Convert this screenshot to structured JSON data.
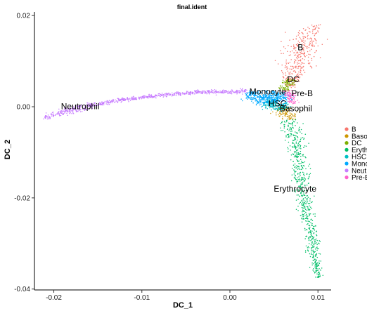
{
  "chart_data": {
    "type": "scatter",
    "title": "final.ident",
    "xlabel": "DC_1",
    "ylabel": "DC_2",
    "xlim": [
      -0.0222,
      0.0115
    ],
    "ylim": [
      -0.0402,
      0.0208
    ],
    "x_ticks": [
      {
        "value": -0.02,
        "label": "-0.02"
      },
      {
        "value": -0.01,
        "label": "-0.01"
      },
      {
        "value": 0.0,
        "label": "0.00"
      },
      {
        "value": 0.01,
        "label": "0.01"
      }
    ],
    "y_ticks": [
      {
        "value": 0.02,
        "label": "0.02"
      },
      {
        "value": 0.0,
        "label": "0.00"
      },
      {
        "value": -0.02,
        "label": "-0.02"
      },
      {
        "value": -0.04,
        "label": "-0.04"
      }
    ],
    "grid": false,
    "legend_position": "right",
    "series": [
      {
        "name": "B",
        "color": "#F8766D",
        "path": [
          [
            0.0067,
            0.0044
          ],
          [
            0.0076,
            0.009
          ],
          [
            0.0086,
            0.014
          ],
          [
            0.0095,
            0.018
          ]
        ],
        "spread": [
          0.0003,
          0.001,
          0.0011,
          0.0004
        ],
        "count": 350
      },
      {
        "name": "Basophil",
        "color": "#CD9600",
        "path": [
          [
            0.0058,
            0.0
          ],
          [
            0.0064,
            -0.0013
          ],
          [
            0.0069,
            -0.0028
          ]
        ],
        "spread": [
          0.0004,
          0.0006,
          0.0003
        ],
        "count": 120
      },
      {
        "name": "DC",
        "color": "#7CAE00",
        "path": [
          [
            0.006,
            0.0036
          ],
          [
            0.0066,
            0.005
          ],
          [
            0.0071,
            0.006
          ]
        ],
        "spread": [
          0.0004,
          0.0004,
          0.0003
        ],
        "count": 90
      },
      {
        "name": "Erythrocyte",
        "color": "#00BE67",
        "path": [
          [
            0.0068,
            -0.003
          ],
          [
            0.0074,
            -0.008
          ],
          [
            0.008,
            -0.014
          ],
          [
            0.0086,
            -0.021
          ],
          [
            0.0092,
            -0.028
          ],
          [
            0.0097,
            -0.034
          ],
          [
            0.0101,
            -0.0375
          ]
        ],
        "spread": [
          0.0006,
          0.0006,
          0.0005,
          0.0004,
          0.0004,
          0.0003,
          0.0002
        ],
        "count": 650
      },
      {
        "name": "HSC",
        "color": "#00BFC4",
        "path": [
          [
            0.004,
            0.001
          ],
          [
            0.0055,
            0.0005
          ],
          [
            0.0062,
            -0.0005
          ]
        ],
        "spread": [
          0.0007,
          0.0006,
          0.0004
        ],
        "count": 220
      },
      {
        "name": "Monocyte",
        "color": "#00A9FF",
        "path": [
          [
            0.002,
            0.0028
          ],
          [
            0.0035,
            0.002
          ],
          [
            0.005,
            0.0012
          ],
          [
            0.006,
            0.003
          ]
        ],
        "spread": [
          0.0005,
          0.0008,
          0.0009,
          0.0007
        ],
        "count": 420
      },
      {
        "name": "Neutrophil",
        "color": "#C77CFF",
        "path": [
          [
            -0.0212,
            -0.0025
          ],
          [
            -0.019,
            -0.0013
          ],
          [
            -0.016,
            0.0002
          ],
          [
            -0.013,
            0.0013
          ],
          [
            -0.01,
            0.0021
          ],
          [
            -0.007,
            0.0027
          ],
          [
            -0.004,
            0.0031
          ],
          [
            -0.001,
            0.0033
          ],
          [
            0.002,
            0.0034
          ]
        ],
        "spread": [
          0.0002,
          0.0004,
          0.0003,
          0.0002,
          0.0002,
          0.0002,
          0.0002,
          0.0002,
          0.0003
        ],
        "count": 750
      },
      {
        "name": "Pre-B",
        "color": "#FF61CC",
        "path": [
          [
            0.0065,
            0.0034
          ],
          [
            0.0069,
            0.002
          ],
          [
            0.0073,
            0.0008
          ]
        ],
        "spread": [
          0.0003,
          0.0004,
          0.0003
        ],
        "count": 90
      }
    ],
    "cluster_labels": [
      {
        "text": "B",
        "x": 0.008,
        "y": 0.013
      },
      {
        "text": "DC",
        "x": 0.0072,
        "y": 0.006
      },
      {
        "text": "Monocyte",
        "x": 0.0043,
        "y": 0.0033
      },
      {
        "text": "Pre-B",
        "x": 0.0082,
        "y": 0.0029
      },
      {
        "text": "HSC",
        "x": 0.0054,
        "y": 0.0007
      },
      {
        "text": "Basophil",
        "x": 0.0075,
        "y": -0.0004
      },
      {
        "text": "Neutrophil",
        "x": -0.017,
        "y": 0.0001
      },
      {
        "text": "Erythrocyte",
        "x": 0.0074,
        "y": -0.018
      }
    ],
    "legend_labels": [
      "B",
      "Baso",
      "DC",
      "Eryth",
      "HSC",
      "Mono",
      "Neut",
      "Pre-B"
    ]
  }
}
